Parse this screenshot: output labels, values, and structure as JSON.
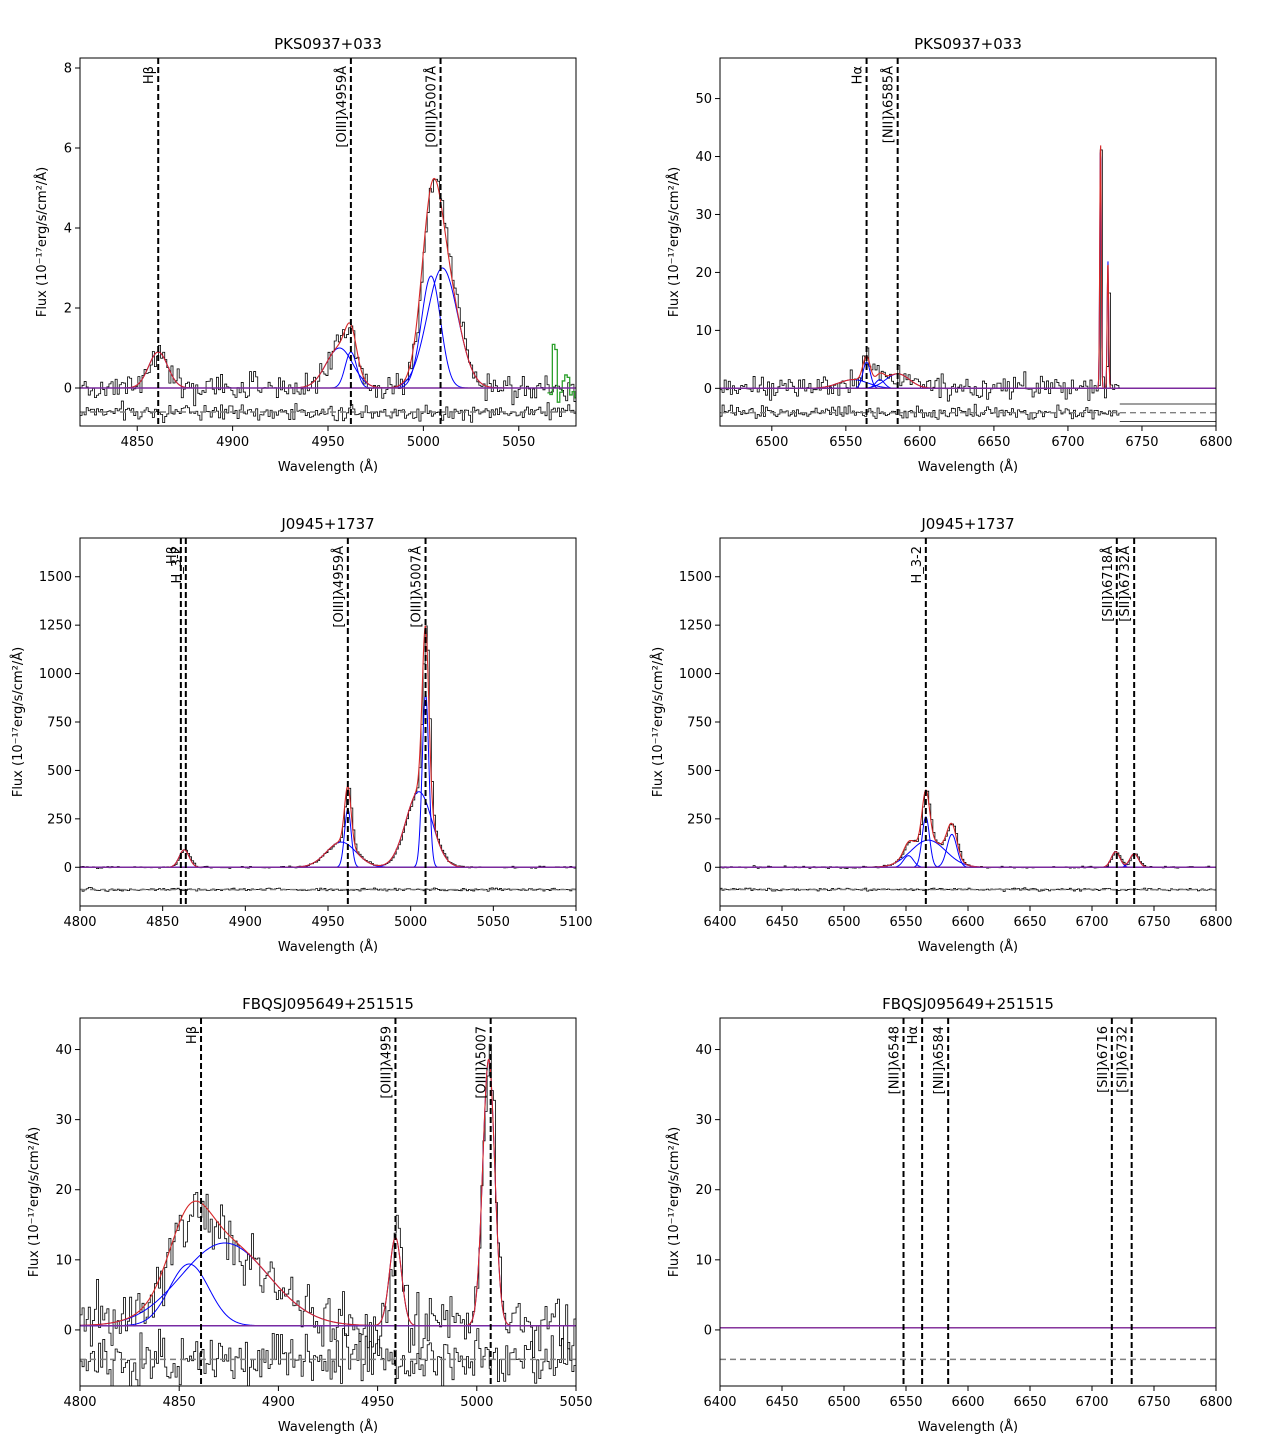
{
  "chart_data": [
    {
      "type": "line",
      "title": "PKS0937+033",
      "xlabel": "Wavelength (Å)",
      "ylabel": "Flux (10⁻¹⁷erg/s/cm²/Å)",
      "xlim": [
        4820,
        5080
      ],
      "ylim": [
        -0.95,
        8.25
      ],
      "xticks": [
        4850,
        4900,
        4950,
        5000,
        5050
      ],
      "yticks": [
        0,
        2,
        4,
        6,
        8
      ],
      "lines": [
        {
          "label": "Hβ",
          "x": 4861
        },
        {
          "label": "[OIII]λ4959Å",
          "x": 4962
        },
        {
          "label": "[OIII]λ5007Å",
          "x": 5009
        }
      ],
      "components": [
        {
          "center": 4861,
          "sigma": 5.0,
          "amp": 0.9
        },
        {
          "center": 4956,
          "sigma": 7.0,
          "amp": 1.0
        },
        {
          "center": 4962,
          "sigma": 3.0,
          "amp": 0.9
        },
        {
          "center": 5004,
          "sigma": 5.0,
          "amp": 2.8
        },
        {
          "center": 5010,
          "sigma": 8.0,
          "amp": 3.0
        }
      ],
      "baseline": 0.0,
      "noise": 0.25,
      "residual_level": -0.6,
      "residual_noise": 0.15,
      "extra_green": {
        "x0": 5065,
        "x1": 5080
      }
    },
    {
      "type": "line",
      "title": "PKS0937+033",
      "xlabel": "Wavelength (Å)",
      "ylabel": "Flux (10⁻¹⁷erg/s/cm²/Å)",
      "xlim": [
        6465,
        6800
      ],
      "ylim": [
        -6.5,
        57
      ],
      "xticks": [
        6500,
        6550,
        6600,
        6650,
        6700,
        6750,
        6800
      ],
      "yticks": [
        0,
        10,
        20,
        30,
        40,
        50
      ],
      "lines": [
        {
          "label": "Hα",
          "x": 6564
        },
        {
          "label": "[NII]λ6585Å",
          "x": 6585
        }
      ],
      "components": [
        {
          "center": 6564,
          "sigma": 2.5,
          "amp": 4.5
        },
        {
          "center": 6555,
          "sigma": 10.0,
          "amp": 1.5
        },
        {
          "center": 6573,
          "sigma": 3.0,
          "amp": 1.5
        },
        {
          "center": 6585,
          "sigma": 8.0,
          "amp": 2.5
        },
        {
          "center": 6722,
          "sigma": 0.5,
          "amp": 43
        },
        {
          "center": 6727,
          "sigma": 0.5,
          "amp": 22
        }
      ],
      "baseline": 0.0,
      "noise": 1.4,
      "residual_level": -4.2,
      "residual_noise": 0.8,
      "data_cutoff": 6735
    },
    {
      "type": "line",
      "title": "J0945+1737",
      "xlabel": "Wavelength (Å)",
      "ylabel": "Flux (10⁻¹⁷erg/s/cm²/Å)",
      "xlim": [
        4800,
        5100
      ],
      "ylim": [
        -200,
        1700
      ],
      "xticks": [
        4800,
        4850,
        4900,
        4950,
        5000,
        5050,
        5100
      ],
      "yticks": [
        0,
        250,
        500,
        750,
        1000,
        1250,
        1500
      ],
      "lines": [
        {
          "label": "Hβ",
          "x": 4861
        },
        {
          "label": "H_3-2",
          "x": 4864
        },
        {
          "label": "[OIII]λ4959Å",
          "x": 4962
        },
        {
          "label": "[OIII]λ5007Å",
          "x": 5009
        }
      ],
      "components": [
        {
          "center": 4863,
          "sigma": 3.0,
          "amp": 90
        },
        {
          "center": 4958,
          "sigma": 9.0,
          "amp": 130
        },
        {
          "center": 4962,
          "sigma": 2.0,
          "amp": 300
        },
        {
          "center": 5005,
          "sigma": 8.0,
          "amp": 390
        },
        {
          "center": 5009,
          "sigma": 2.0,
          "amp": 900
        }
      ],
      "baseline": 0.0,
      "noise": 4,
      "residual_level": -115,
      "residual_noise": 6
    },
    {
      "type": "line",
      "title": "J0945+1737",
      "xlabel": "Wavelength (Å)",
      "ylabel": "Flux (10⁻¹⁷erg/s/cm²/Å)",
      "xlim": [
        6400,
        6800
      ],
      "ylim": [
        -200,
        1700
      ],
      "xticks": [
        6400,
        6450,
        6500,
        6550,
        6600,
        6650,
        6700,
        6750,
        6800
      ],
      "yticks": [
        0,
        250,
        500,
        750,
        1000,
        1250,
        1500
      ],
      "lines": [
        {
          "label": "H_3-2",
          "x": 6566
        },
        {
          "label": "[SII]λ6718Å",
          "x": 6720
        },
        {
          "label": "[SII]λ6732Å",
          "x": 6734
        }
      ],
      "components": [
        {
          "center": 6552,
          "sigma": 4.0,
          "amp": 60
        },
        {
          "center": 6566,
          "sigma": 3.0,
          "amp": 260
        },
        {
          "center": 6568,
          "sigma": 14.0,
          "amp": 140
        },
        {
          "center": 6587,
          "sigma": 4.0,
          "amp": 170
        },
        {
          "center": 6719,
          "sigma": 3.5,
          "amp": 80
        },
        {
          "center": 6734,
          "sigma": 3.5,
          "amp": 70
        }
      ],
      "baseline": 0.0,
      "noise": 4,
      "residual_level": -115,
      "residual_noise": 5
    },
    {
      "type": "line",
      "title": "FBQSJ095649+251515",
      "xlabel": "Wavelength (Å)",
      "ylabel": "Flux (10⁻¹⁷erg/s/cm²/Å)",
      "xlim": [
        4800,
        5050
      ],
      "ylim": [
        -8,
        44.5
      ],
      "xticks": [
        4800,
        4850,
        4900,
        4950,
        5000,
        5050
      ],
      "yticks": [
        0,
        10,
        20,
        30,
        40
      ],
      "lines": [
        {
          "label": "Hβ",
          "x": 4861
        },
        {
          "label": "[OIII]λ4959",
          "x": 4959
        },
        {
          "label": "[OIII]λ5007",
          "x": 5007
        }
      ],
      "components": [
        {
          "center": 4855,
          "sigma": 10.0,
          "amp": 8.8
        },
        {
          "center": 4873,
          "sigma": 22.0,
          "amp": 11.8
        },
        {
          "center": 4959,
          "sigma": 3.0,
          "amp": 12.6
        },
        {
          "center": 5006,
          "sigma": 3.0,
          "amp": 38
        }
      ],
      "baseline": 0.6,
      "noise": 3.2,
      "residual_level": -4.2,
      "residual_noise": 2.8
    },
    {
      "type": "line",
      "title": "FBQSJ095649+251515",
      "xlabel": "Wavelength (Å)",
      "ylabel": "Flux (10⁻¹⁷erg/s/cm²/Å)",
      "xlim": [
        6400,
        6800
      ],
      "ylim": [
        -8,
        44.5
      ],
      "xticks": [
        6400,
        6450,
        6500,
        6550,
        6600,
        6650,
        6700,
        6750,
        6800
      ],
      "yticks": [
        0,
        10,
        20,
        30,
        40
      ],
      "lines": [
        {
          "label": "[NII]λ6548",
          "x": 6548
        },
        {
          "label": "Hα",
          "x": 6563
        },
        {
          "label": "[NII]λ6584",
          "x": 6584
        },
        {
          "label": "[SII]λ6716",
          "x": 6716
        },
        {
          "label": "[SII]λ6732",
          "x": 6732
        }
      ],
      "components": [],
      "baseline": 0.3,
      "noise": 0,
      "residual_level": -4.2,
      "residual_noise": 0,
      "no_data": true
    }
  ]
}
